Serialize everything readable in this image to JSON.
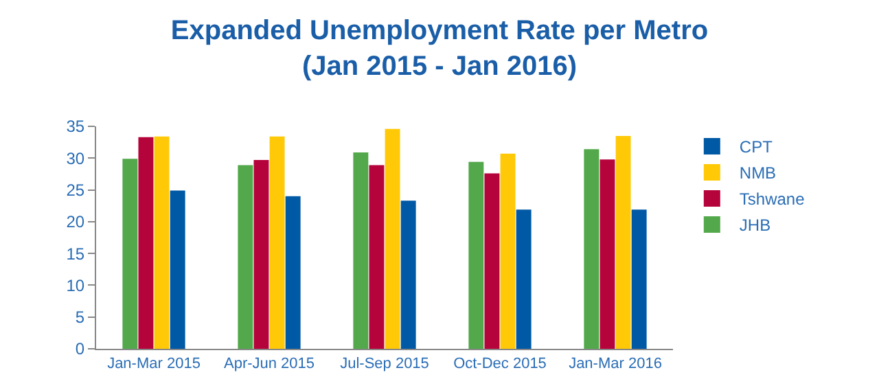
{
  "chart_data": {
    "type": "bar",
    "title": "Expanded Unemployment Rate per Metro\n(Jan 2015 - Jan 2016)",
    "categories": [
      "Jan-Mar 2015",
      "Apr-Jun 2015",
      "Jul-Sep 2015",
      "Oct-Dec 2015",
      "Jan-Mar 2016"
    ],
    "series": [
      {
        "name": "JHB",
        "color": "#52a84a",
        "values": [
          29.9,
          28.9,
          30.9,
          29.4,
          31.4
        ]
      },
      {
        "name": "Tshwane",
        "color": "#b5033b",
        "values": [
          33.3,
          29.7,
          28.9,
          27.6,
          29.8
        ]
      },
      {
        "name": "NMB",
        "color": "#ffc907",
        "values": [
          33.4,
          33.4,
          34.6,
          30.7,
          33.5
        ]
      },
      {
        "name": "CPT",
        "color": "#0059a4",
        "values": [
          24.9,
          24.0,
          23.3,
          21.9,
          21.9
        ]
      }
    ],
    "ylim": [
      0,
      35
    ],
    "yticks": [
      0,
      5,
      10,
      15,
      20,
      25,
      30,
      35
    ],
    "legend": "right"
  }
}
